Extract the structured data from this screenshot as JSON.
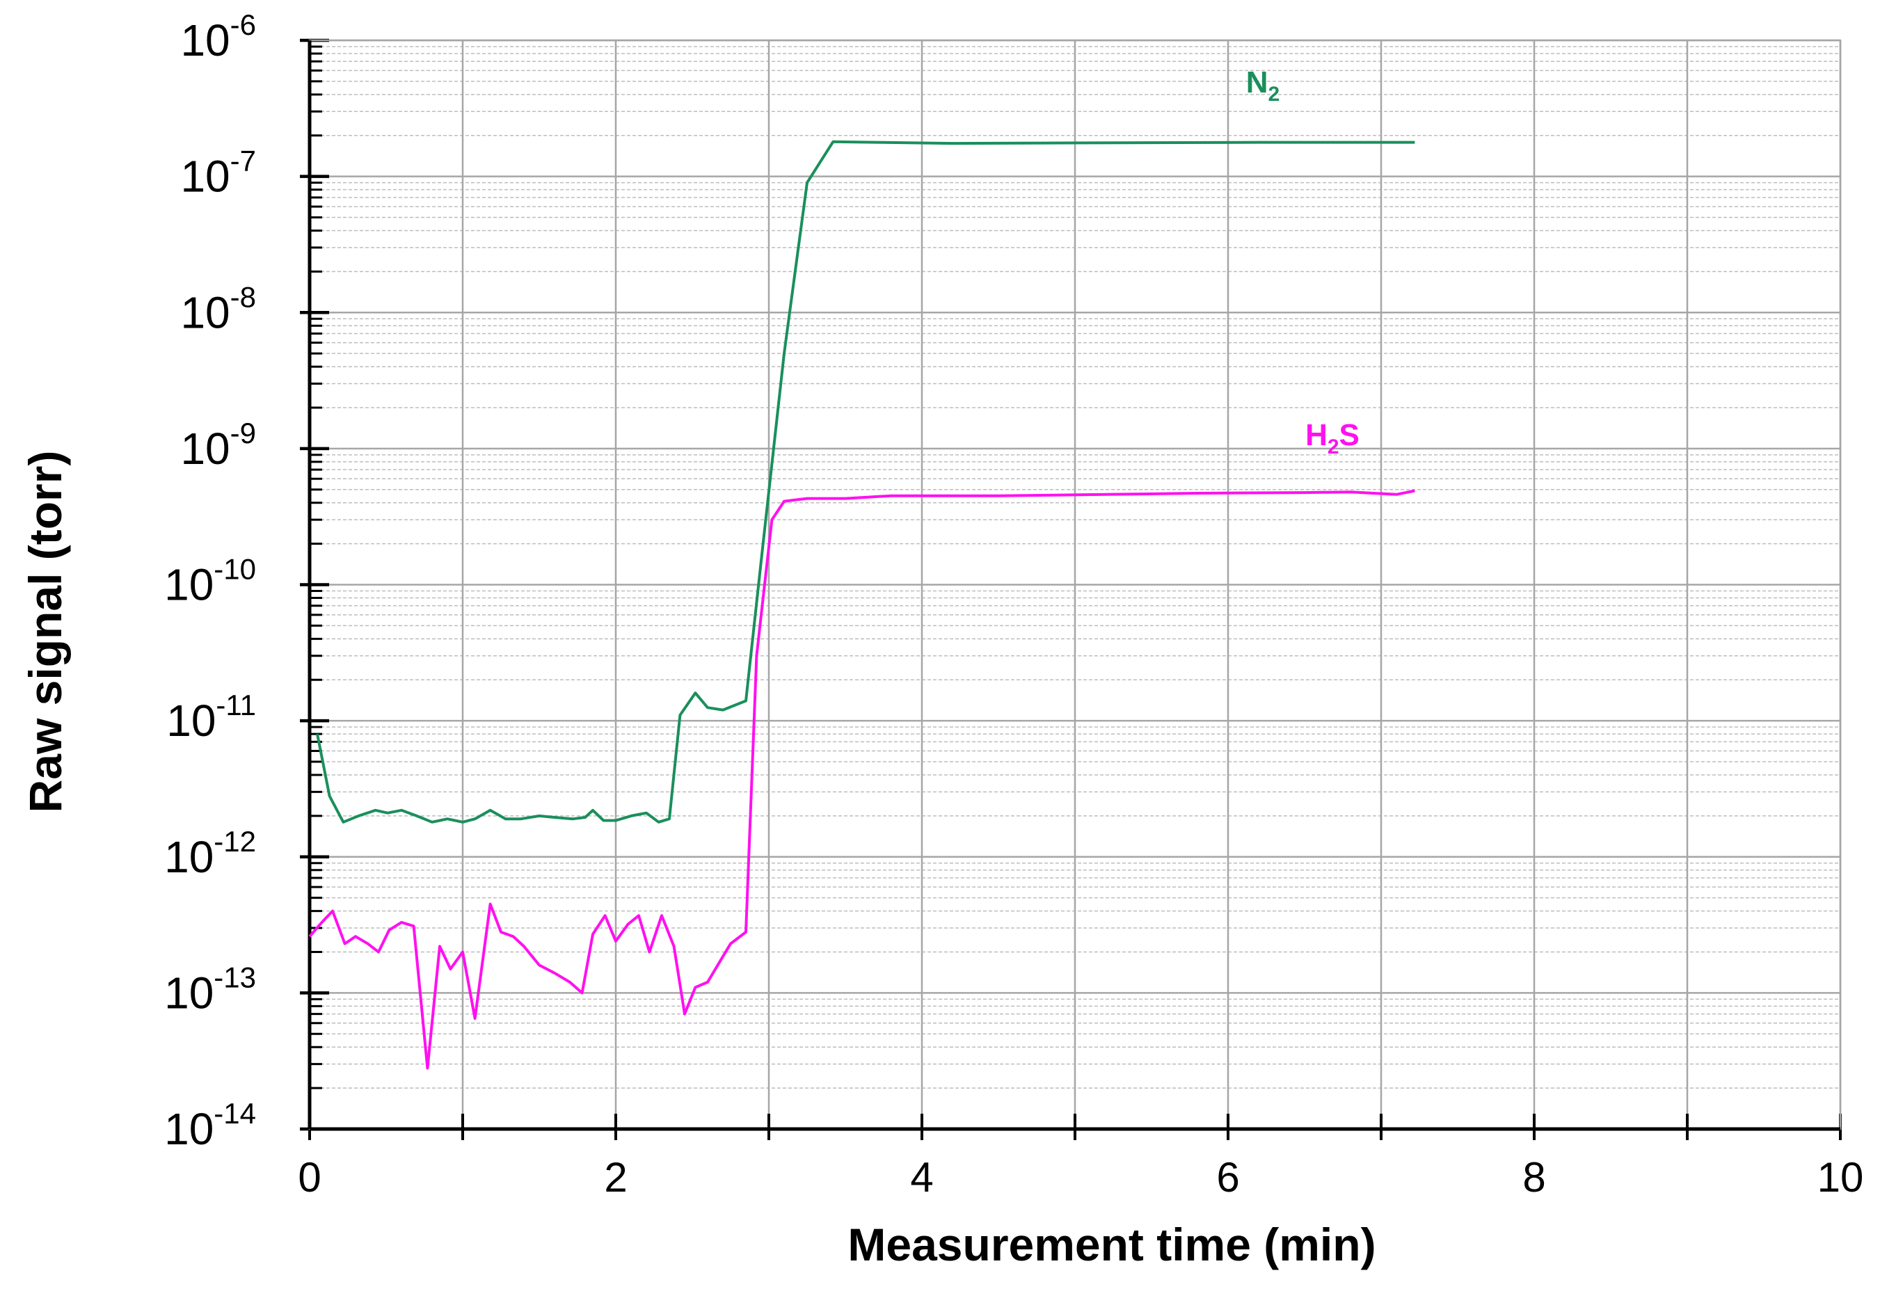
{
  "chart_data": {
    "type": "line",
    "title": "",
    "xlabel": "Measurement time (min)",
    "ylabel": "Raw signal (torr)",
    "xlim": [
      0,
      10
    ],
    "ylim": [
      1e-14,
      1e-06
    ],
    "yscale": "log",
    "grid": true,
    "x_ticks": [
      "0",
      "2",
      "4",
      "6",
      "8",
      "10"
    ],
    "y_ticks": [
      {
        "base": "10",
        "exp": "-6"
      },
      {
        "base": "10",
        "exp": "-7"
      },
      {
        "base": "10",
        "exp": "-8"
      },
      {
        "base": "10",
        "exp": "-9"
      },
      {
        "base": "10",
        "exp": "-10"
      },
      {
        "base": "10",
        "exp": "-11"
      },
      {
        "base": "10",
        "exp": "-12"
      },
      {
        "base": "10",
        "exp": "-13"
      },
      {
        "base": "10",
        "exp": "-14"
      }
    ],
    "series": [
      {
        "name": "N2",
        "label_main": "N",
        "label_sub": "2",
        "label_suffix": "",
        "color": "#1a8f5c",
        "x": [
          0.05,
          0.13,
          0.22,
          0.32,
          0.43,
          0.51,
          0.6,
          0.7,
          0.8,
          0.9,
          1.0,
          1.08,
          1.18,
          1.28,
          1.38,
          1.5,
          1.6,
          1.72,
          1.8,
          1.85,
          1.92,
          2.0,
          2.1,
          2.2,
          2.28,
          2.35,
          2.42,
          2.52,
          2.6,
          2.7,
          2.85,
          2.95,
          3.1,
          3.25,
          3.42,
          3.7,
          4.2,
          4.8,
          5.5,
          6.2,
          7.0,
          7.22
        ],
        "y": [
          8e-12,
          2.8e-12,
          1.8e-12,
          2e-12,
          2.2e-12,
          2.1e-12,
          2.2e-12,
          2e-12,
          1.8e-12,
          1.9e-12,
          1.8e-12,
          1.9e-12,
          2.2e-12,
          1.9e-12,
          1.9e-12,
          2e-12,
          1.95e-12,
          1.9e-12,
          1.95e-12,
          2.2e-12,
          1.85e-12,
          1.85e-12,
          2e-12,
          2.1e-12,
          1.8e-12,
          1.9e-12,
          1.1e-11,
          1.6e-11,
          1.25e-11,
          1.2e-11,
          1.4e-11,
          1.5e-10,
          5e-09,
          9e-08,
          1.8e-07,
          1.78e-07,
          1.75e-07,
          1.76e-07,
          1.77e-07,
          1.78e-07,
          1.78e-07,
          1.78e-07
        ]
      },
      {
        "name": "H2S",
        "label_main": "H",
        "label_sub": "2",
        "label_suffix": "S",
        "color": "#ff10f0",
        "x": [
          0.0,
          0.08,
          0.15,
          0.23,
          0.3,
          0.38,
          0.45,
          0.52,
          0.6,
          0.68,
          0.77,
          0.85,
          0.92,
          1.0,
          1.08,
          1.18,
          1.25,
          1.33,
          1.4,
          1.5,
          1.6,
          1.7,
          1.78,
          1.85,
          1.93,
          2.0,
          2.08,
          2.15,
          2.22,
          2.3,
          2.38,
          2.45,
          2.52,
          2.6,
          2.68,
          2.75,
          2.85,
          2.92,
          3.02,
          3.1,
          3.25,
          3.5,
          3.8,
          4.5,
          5.2,
          5.8,
          6.5,
          6.8,
          7.1,
          7.22
        ],
        "y": [
          2.6e-13,
          3.3e-13,
          4e-13,
          2.3e-13,
          2.6e-13,
          2.3e-13,
          2e-13,
          2.9e-13,
          3.3e-13,
          3.1e-13,
          2.8e-14,
          2.2e-13,
          1.5e-13,
          2e-13,
          6.5e-14,
          4.5e-13,
          2.8e-13,
          2.6e-13,
          2.2e-13,
          1.6e-13,
          1.4e-13,
          1.2e-13,
          1e-13,
          2.7e-13,
          3.7e-13,
          2.4e-13,
          3.2e-13,
          3.7e-13,
          2e-13,
          3.7e-13,
          2.2e-13,
          7e-14,
          1.1e-13,
          1.2e-13,
          1.7e-13,
          2.3e-13,
          2.8e-13,
          3e-11,
          3e-10,
          4.1e-10,
          4.3e-10,
          4.3e-10,
          4.5e-10,
          4.5e-10,
          4.6e-10,
          4.7e-10,
          4.75e-10,
          4.8e-10,
          4.6e-10,
          4.9e-10
        ]
      }
    ]
  }
}
